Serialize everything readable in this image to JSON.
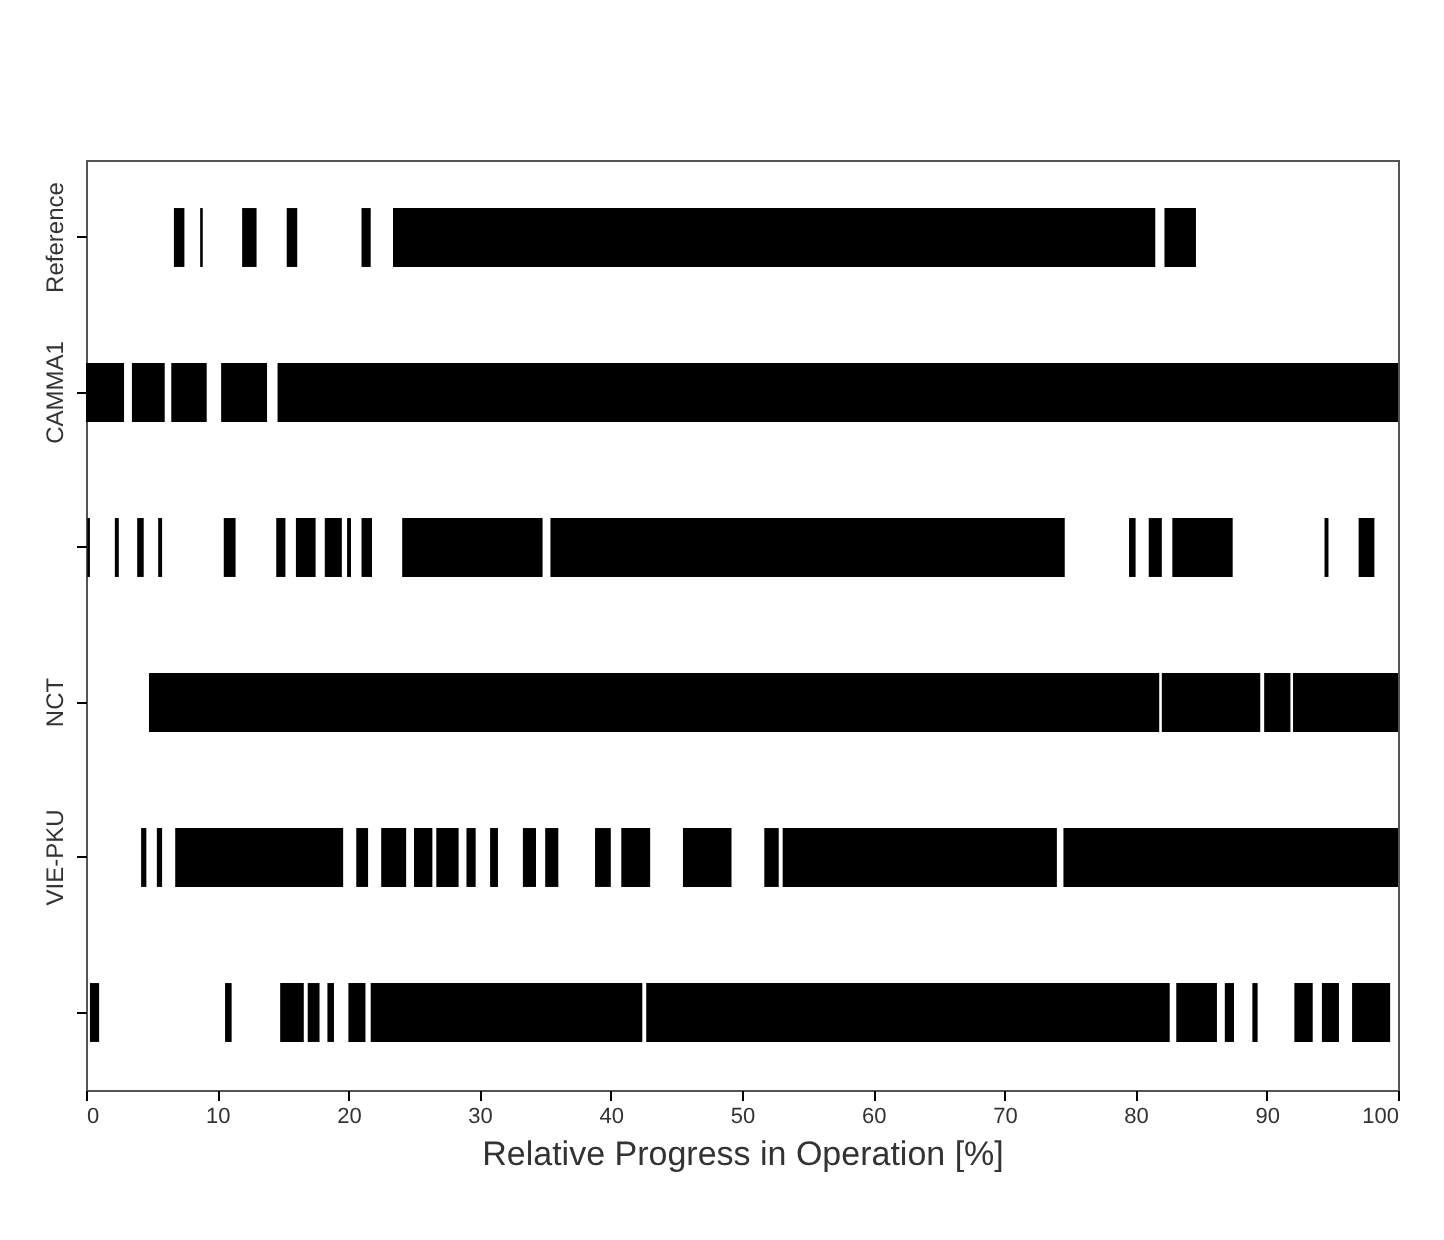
{
  "chart_data": {
    "type": "bar",
    "orientation": "horizontal",
    "xlabel": "Relative Progress in Operation [%]",
    "categories": [
      "Reference",
      "CAMMA1",
      null,
      "NCT",
      "VIE-PKU",
      null
    ],
    "xlim": [
      0,
      100
    ],
    "xticks": [
      0,
      10,
      20,
      30,
      40,
      50,
      60,
      70,
      80,
      90,
      100
    ],
    "series": [
      {
        "color": "#000000",
        "base": [
          6.7,
          0,
          0.1,
          4.8,
          4.2,
          0.3
        ],
        "values": [
          0.8,
          2.9,
          0.2,
          77,
          0.4,
          0.7
        ]
      },
      {
        "color": "#000000",
        "base": [
          8.7,
          3.5,
          2.2,
          82,
          5.4,
          10.6
        ],
        "values": [
          0.2,
          2.5,
          0.3,
          7.5,
          0.4,
          0.5
        ]
      },
      {
        "color": "#000000",
        "base": [
          11.9,
          6.5,
          3.9,
          89.8,
          6.8,
          14.8
        ],
        "values": [
          1.1,
          2.7,
          0.5,
          2,
          12.8,
          1.8
        ]
      },
      {
        "color": "#000000",
        "base": [
          15.3,
          10.3,
          5.5,
          92,
          20.6,
          16.9
        ],
        "values": [
          0.8,
          3.5,
          0.3,
          8,
          0.9,
          0.9
        ]
      },
      {
        "color": "#000000",
        "base": [
          21.0,
          14.6,
          10.5,
          null,
          22.5,
          18.4
        ],
        "values": [
          0.7,
          85.4,
          0.9,
          null,
          1.9,
          0.5
        ]
      },
      {
        "color": "#000000",
        "base": [
          23.4,
          null,
          14.5,
          null,
          25,
          20
        ],
        "values": [
          58.1,
          null,
          0.7,
          null,
          1.4,
          1.3
        ]
      },
      {
        "color": "#000000",
        "base": [
          82.2,
          null,
          16,
          null,
          26.7,
          21.7
        ],
        "values": [
          2.4,
          null,
          1.5,
          null,
          1.7,
          20.7
        ]
      },
      {
        "color": "#000000",
        "base": [
          null,
          null,
          18.2,
          null,
          29,
          42.7
        ],
        "values": [
          null,
          null,
          1.3,
          null,
          0.7,
          39.9
        ]
      },
      {
        "color": "#000000",
        "base": [
          null,
          null,
          19.9,
          null,
          30.8,
          83.1
        ],
        "values": [
          null,
          null,
          0.3,
          null,
          0.6,
          3.1
        ]
      },
      {
        "color": "#000000",
        "base": [
          null,
          null,
          21,
          null,
          33.3,
          86.8
        ],
        "values": [
          null,
          null,
          0.8,
          null,
          1,
          0.7
        ]
      },
      {
        "color": "#000000",
        "base": [
          null,
          null,
          24.1,
          null,
          35,
          88.9
        ],
        "values": [
          null,
          null,
          10.7,
          null,
          1,
          0.4
        ]
      },
      {
        "color": "#000000",
        "base": [
          null,
          null,
          35.4,
          null,
          38.8,
          92.1
        ],
        "values": [
          null,
          null,
          39.2,
          null,
          1.2,
          1.4
        ]
      },
      {
        "color": "#000000",
        "base": [
          null,
          null,
          79.5,
          null,
          40.8,
          94.2
        ],
        "values": [
          null,
          null,
          0.5,
          null,
          2.2,
          1.3
        ]
      },
      {
        "color": "#000000",
        "base": [
          null,
          null,
          81,
          null,
          45.5,
          96.5
        ],
        "values": [
          null,
          null,
          1,
          null,
          3.7,
          2.9
        ]
      },
      {
        "color": "#000000",
        "base": [
          null,
          null,
          82.8,
          null,
          51.7,
          null
        ],
        "values": [
          null,
          null,
          4.6,
          null,
          1.1,
          null
        ]
      },
      {
        "color": "#000000",
        "base": [
          null,
          null,
          94.4,
          null,
          53.1,
          null
        ],
        "values": [
          null,
          null,
          0.3,
          null,
          20.9,
          null
        ]
      },
      {
        "color": "#000000",
        "base": [
          null,
          null,
          97,
          null,
          74.5,
          null
        ],
        "values": [
          null,
          null,
          1.2,
          null,
          25.5,
          null
        ]
      }
    ]
  }
}
